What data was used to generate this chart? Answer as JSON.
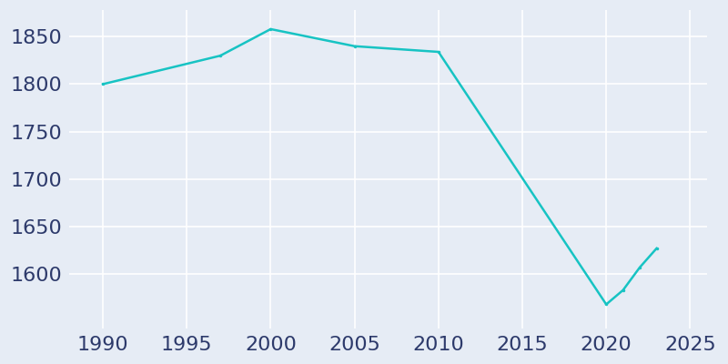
{
  "years": [
    1990,
    1997,
    2000,
    2005,
    2010,
    2020,
    2021,
    2022,
    2023
  ],
  "population": [
    1800,
    1830,
    1858,
    1840,
    1834,
    1568,
    1583,
    1607,
    1627
  ],
  "line_color": "#17c3c3",
  "bg_color": "#e6ecf5",
  "grid_color": "#ffffff",
  "tick_color": "#2d3a6b",
  "xlim": [
    1988,
    2026
  ],
  "ylim": [
    1543,
    1878
  ],
  "xticks": [
    1990,
    1995,
    2000,
    2005,
    2010,
    2015,
    2020,
    2025
  ],
  "yticks": [
    1600,
    1650,
    1700,
    1750,
    1800,
    1850
  ],
  "linewidth": 1.8,
  "tick_fontsize": 16,
  "figsize": [
    8.0,
    4.0
  ],
  "dpi": 100
}
